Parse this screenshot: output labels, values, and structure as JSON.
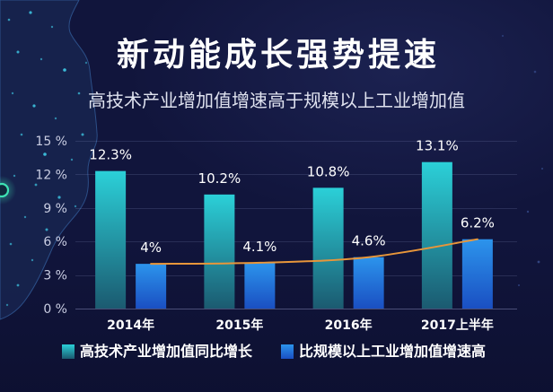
{
  "colors": {
    "background": "#11153c"
  },
  "chart_data": {
    "type": "bar",
    "title": "新动能成长强势提速",
    "subtitle": "高技术产业增加值增速高于规模以上工业增加值",
    "xlabel": "",
    "ylabel": "",
    "categories": [
      "2014年",
      "2015年",
      "2016年",
      "2017上半年"
    ],
    "series": [
      {
        "name": "高技术产业增加值同比增长",
        "values": [
          12.3,
          10.2,
          10.8,
          13.1
        ],
        "labels": [
          "12.3%",
          "10.2%",
          "10.8%",
          "13.1%"
        ],
        "color_top": "#2bd0d8",
        "color_bottom": "#1b5a70"
      },
      {
        "name": "比规模以上工业增加值增速高",
        "values": [
          4,
          4.1,
          4.6,
          6.2
        ],
        "labels": [
          "4%",
          "4.1%",
          "4.6%",
          "6.2%"
        ],
        "color_top": "#2c94ec",
        "color_bottom": "#1a4fc2",
        "overlay_line": true,
        "line_color": "#e8963a"
      }
    ],
    "ylim": [
      0,
      15
    ],
    "yticks": [
      0,
      3,
      6,
      9,
      12,
      15
    ],
    "ytick_labels": [
      "0 %",
      "3 %",
      "6 %",
      "9 %",
      "12 %",
      "15 %"
    ],
    "grid": true,
    "legend_position": "bottom"
  }
}
